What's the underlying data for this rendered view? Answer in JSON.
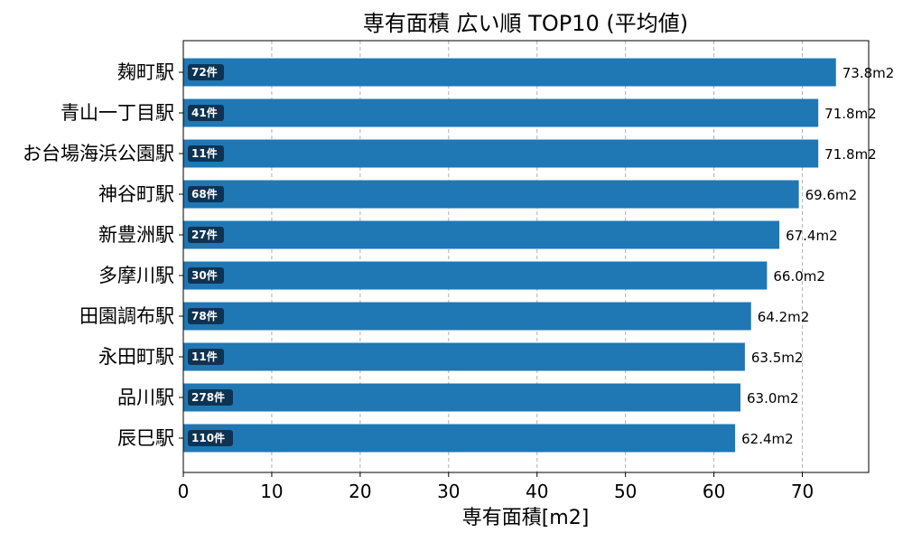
{
  "chart_data": {
    "type": "bar",
    "orientation": "horizontal",
    "title": "専有面積 広い順 TOP10 (平均値)",
    "xlabel": "専有面積[m2]",
    "ylabel": "",
    "xlim": [
      0,
      77.5
    ],
    "xticks": [
      0,
      10,
      20,
      30,
      40,
      50,
      60,
      70
    ],
    "grid": "x-dashed",
    "bar_color": "#1f77b4",
    "badge_color": "#0e3352",
    "value_suffix": "m2",
    "categories": [
      "麹町駅",
      "青山一丁目駅",
      "お台場海浜公園駅",
      "神谷町駅",
      "新豊洲駅",
      "多摩川駅",
      "田園調布駅",
      "永田町駅",
      "品川駅",
      "辰巳駅"
    ],
    "values": [
      73.8,
      71.8,
      71.8,
      69.6,
      67.4,
      66.0,
      64.2,
      63.5,
      63.0,
      62.4
    ],
    "value_labels": [
      "73.8m2",
      "71.8m2",
      "71.8m2",
      "69.6m2",
      "67.4m2",
      "66.0m2",
      "64.2m2",
      "63.5m2",
      "63.0m2",
      "62.4m2"
    ],
    "counts": [
      "72件",
      "41件",
      "11件",
      "68件",
      "27件",
      "30件",
      "78件",
      "11件",
      "278件",
      "110件"
    ]
  }
}
